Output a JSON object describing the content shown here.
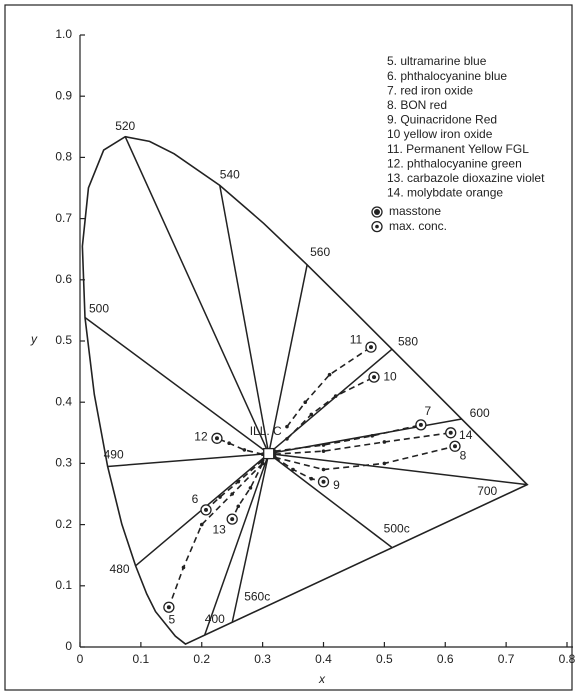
{
  "chart_data": {
    "type": "chromaticity",
    "xlabel": "x",
    "ylabel": "y",
    "xlim": [
      0,
      0.8
    ],
    "ylim": [
      0,
      1
    ],
    "xticks": [
      0,
      0.1,
      0.2,
      0.3,
      0.4,
      0.5,
      0.6,
      0.7,
      0.8
    ],
    "yticks": [
      0,
      0.1,
      0.2,
      0.3,
      0.4,
      0.5,
      0.6,
      0.7,
      0.8,
      0.9,
      {
        "value": 1,
        "label": "1.0"
      }
    ],
    "locus": {
      "x": [
        0.1733,
        0.1566,
        0.1241,
        0.1096,
        0.0913,
        0.0687,
        0.0454,
        0.0235,
        0.0082,
        0.0039,
        0.0139,
        0.0389,
        0.0743,
        0.1142,
        0.1547,
        0.2296,
        0.3016,
        0.3731,
        0.4441,
        0.5125,
        0.5752,
        0.627,
        0.6915,
        0.7347
      ],
      "y": [
        0.0048,
        0.0177,
        0.0578,
        0.0868,
        0.1327,
        0.2007,
        0.295,
        0.4127,
        0.5384,
        0.6548,
        0.7502,
        0.812,
        0.8338,
        0.8262,
        0.8059,
        0.7543,
        0.6923,
        0.6245,
        0.5547,
        0.4866,
        0.4242,
        0.3725,
        0.3083,
        0.2653
      ]
    },
    "white_point": {
      "label": "ILL. C",
      "x": 0.31,
      "y": 0.316
    },
    "wavelengths": [
      {
        "label": "480",
        "x": 0.0913,
        "y": 0.1327
      },
      {
        "label": "490",
        "x": 0.0454,
        "y": 0.295
      },
      {
        "label": "500",
        "x": 0.0082,
        "y": 0.5384
      },
      {
        "label": "520",
        "x": 0.0743,
        "y": 0.8338
      },
      {
        "label": "540",
        "x": 0.2296,
        "y": 0.7543
      },
      {
        "label": "560",
        "x": 0.3731,
        "y": 0.6245
      },
      {
        "label": "580",
        "x": 0.5125,
        "y": 0.4866
      },
      {
        "label": "600",
        "x": 0.627,
        "y": 0.3725
      },
      {
        "label": "700",
        "x": 0.7347,
        "y": 0.2653
      },
      {
        "label": "500c",
        "x": 0.512,
        "y": 0.163
      },
      {
        "label": "560c",
        "x": 0.25,
        "y": 0.04
      },
      {
        "label": "400",
        "x": 0.205,
        "y": 0.02
      }
    ],
    "tracks": [
      {
        "name": "5",
        "x": [
          0.3,
          0.25,
          0.2,
          0.17,
          0.146
        ],
        "y": [
          0.3,
          0.25,
          0.2,
          0.13,
          0.065
        ]
      },
      {
        "name": "6",
        "x": [
          0.3,
          0.26,
          0.23,
          0.207
        ],
        "y": [
          0.305,
          0.27,
          0.245,
          0.224
        ]
      },
      {
        "name": "7",
        "x": [
          0.32,
          0.4,
          0.48,
          0.56
        ],
        "y": [
          0.32,
          0.33,
          0.345,
          0.363
        ]
      },
      {
        "name": "8",
        "x": [
          0.32,
          0.4,
          0.5,
          0.616
        ],
        "y": [
          0.31,
          0.29,
          0.3,
          0.328
        ]
      },
      {
        "name": "9",
        "x": [
          0.32,
          0.35,
          0.38,
          0.4
        ],
        "y": [
          0.31,
          0.29,
          0.275,
          0.27
        ]
      },
      {
        "name": "10",
        "x": [
          0.34,
          0.38,
          0.42,
          0.483
        ],
        "y": [
          0.34,
          0.38,
          0.41,
          0.441
        ]
      },
      {
        "name": "11",
        "x": [
          0.34,
          0.37,
          0.41,
          0.478
        ],
        "y": [
          0.36,
          0.4,
          0.445,
          0.49
        ]
      },
      {
        "name": "12",
        "x": [
          0.3,
          0.27,
          0.245,
          0.225
        ],
        "y": [
          0.315,
          0.322,
          0.333,
          0.341
        ]
      },
      {
        "name": "13",
        "x": [
          0.3,
          0.28,
          0.26,
          0.25
        ],
        "y": [
          0.3,
          0.26,
          0.23,
          0.209
        ]
      },
      {
        "name": "14",
        "x": [
          0.32,
          0.4,
          0.5,
          0.609
        ],
        "y": [
          0.315,
          0.32,
          0.335,
          0.35
        ]
      }
    ],
    "legend": [
      "5. ultramarine blue",
      "6. phthalocyanine blue",
      "7. red iron oxide",
      "8. BON red",
      "9. Quinacridone Red",
      "10 yellow iron oxide",
      "11. Permanent Yellow FGL",
      "12. phthalocyanine green",
      "13. carbazole dioxazine violet",
      "14. molybdate orange"
    ],
    "marker_legend": [
      "masstone",
      "max. conc."
    ]
  }
}
